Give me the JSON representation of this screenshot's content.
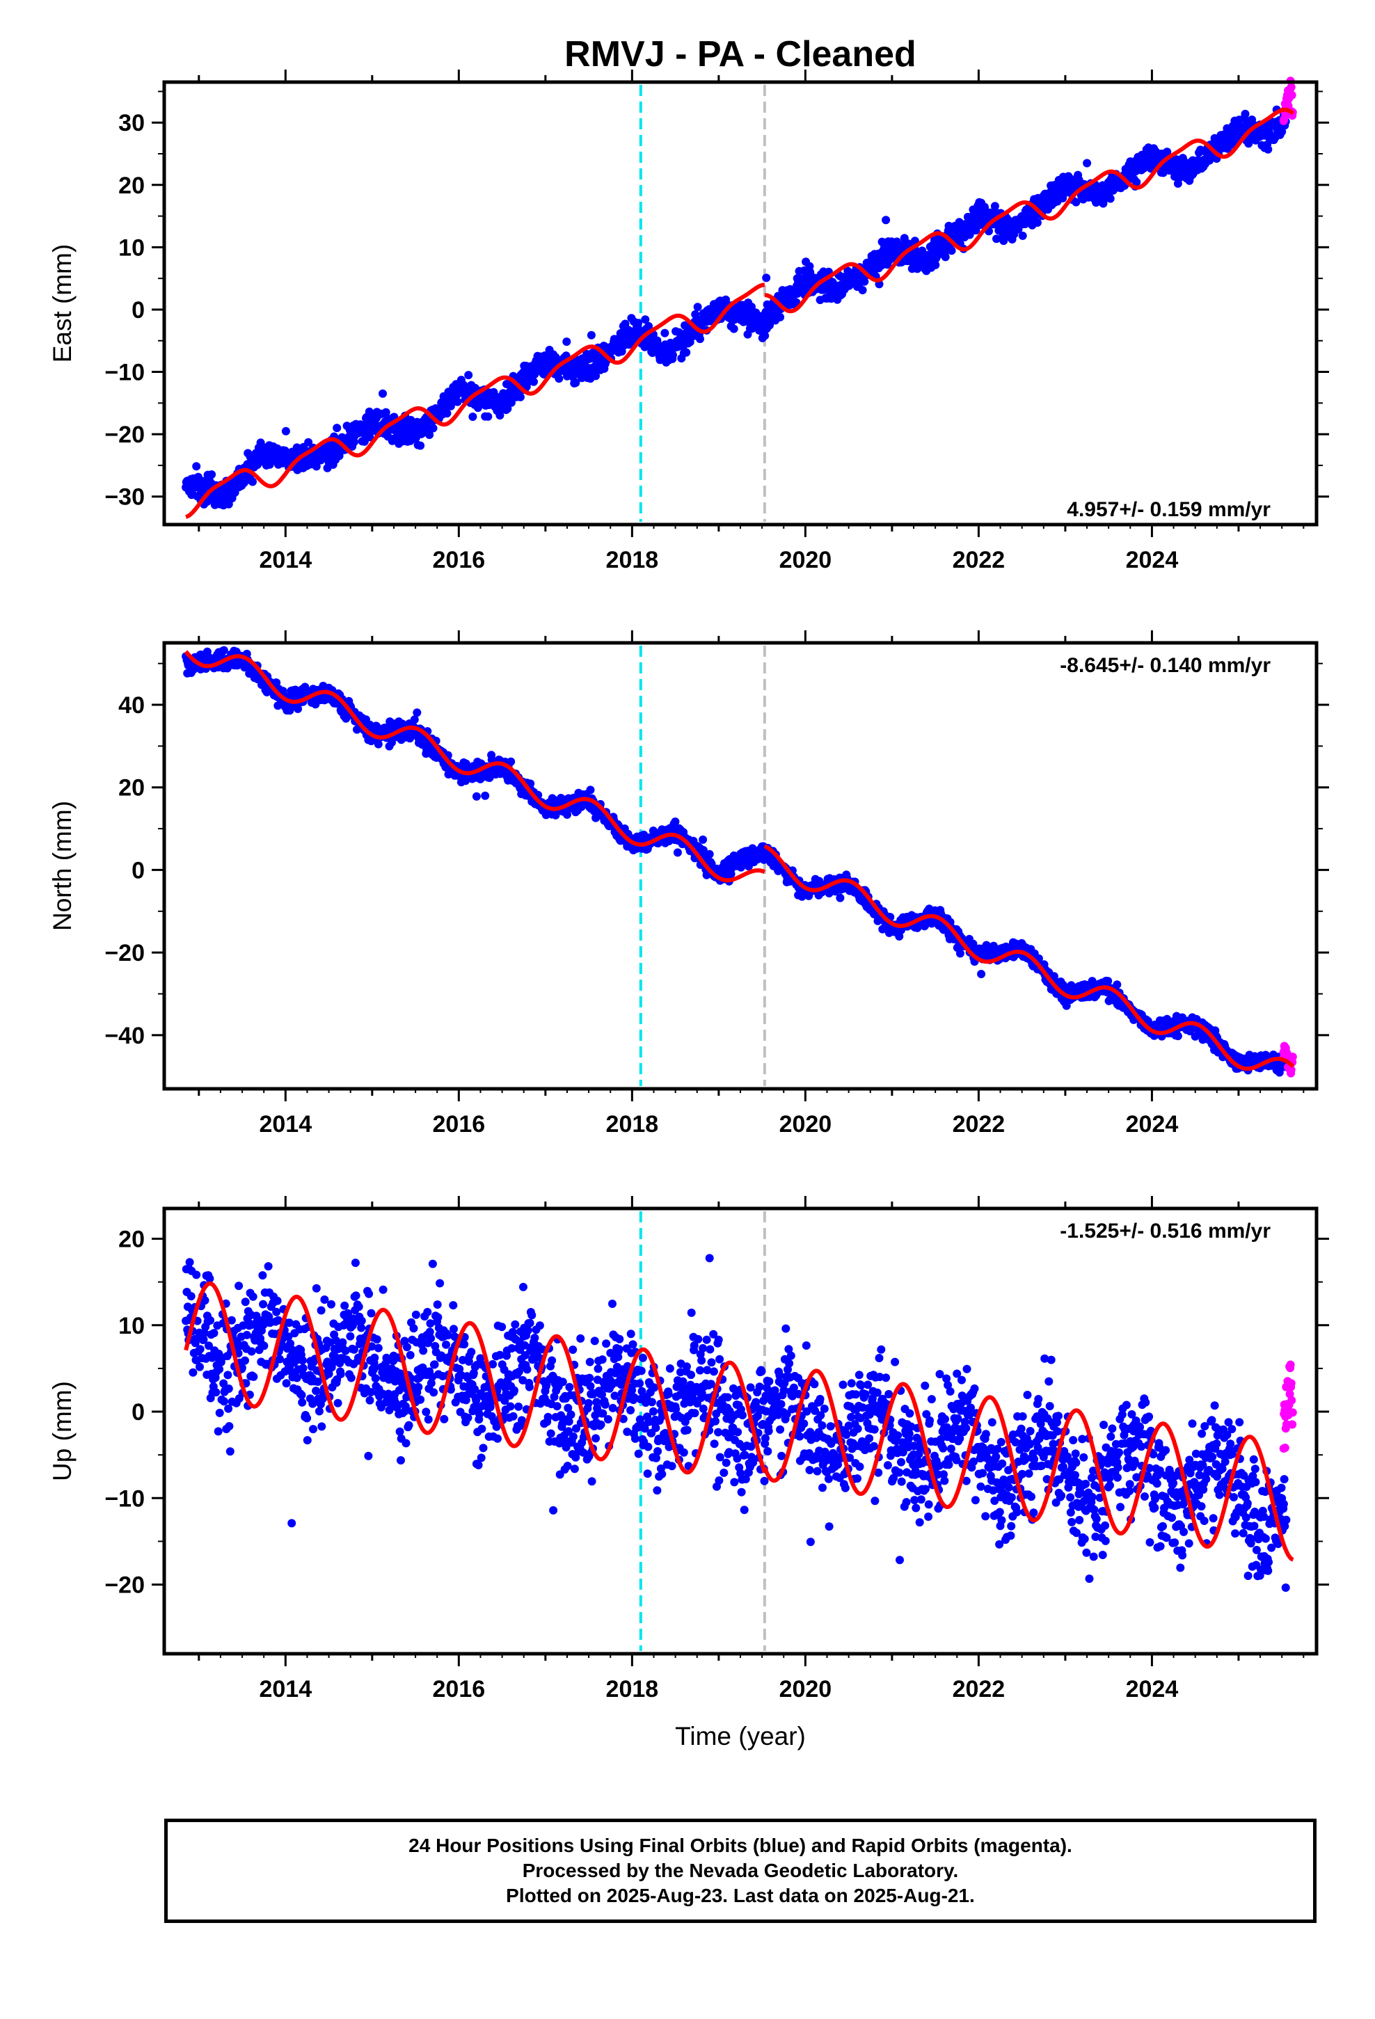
{
  "title": "RMVJ  - PA - Cleaned",
  "xlabel": "Time (year)",
  "footer": [
    "24 Hour Positions Using Final Orbits (blue) and Rapid Orbits (magenta).",
    "Processed by the Nevada Geodetic Laboratory.",
    "Plotted on 2025-Aug-23. Last data on 2025-Aug-21."
  ],
  "colors": {
    "final": "#0000ff",
    "rapid": "#ff00ff",
    "model": "#ff0000",
    "break_equipment": "#00e5ee",
    "break_other": "#c0c0c0"
  },
  "chart_data": [
    {
      "type": "scatter",
      "component": "east",
      "ylabel": "East (mm)",
      "rate_label": "4.957+/- 0.159 mm/yr",
      "rate_position": "bottom-right",
      "xlim": [
        2012.6,
        2025.9
      ],
      "ylim": [
        -34.5,
        36.5
      ],
      "xticks": [
        2014,
        2016,
        2018,
        2020,
        2022,
        2024
      ],
      "yticks": [
        -30,
        -20,
        -10,
        0,
        10,
        20,
        30
      ],
      "breaks": [
        2018.1,
        2019.53
      ],
      "data_start": 2012.85,
      "data_end": 2025.63,
      "series": [
        {
          "name": "Final Orbits",
          "color": "blue",
          "x": [
            2012.9,
            2013.3,
            2013.7,
            2014.2,
            2014.5,
            2015.0,
            2015.5,
            2016.0,
            2016.5,
            2017.0,
            2017.5,
            2018.0,
            2018.4,
            2019.0,
            2019.5,
            2020.0,
            2020.4,
            2021.0,
            2021.4,
            2022.0,
            2022.4,
            2023.0,
            2023.4,
            2024.0,
            2024.4,
            2025.0,
            2025.4,
            2025.6
          ],
          "y": [
            -28,
            -30,
            -23,
            -24,
            -23,
            -18,
            -20,
            -13,
            -15,
            -8,
            -10,
            -3,
            -7,
            0,
            -2,
            5,
            3,
            10,
            8,
            15,
            13,
            20,
            18,
            25,
            22,
            29,
            28,
            31
          ]
        },
        {
          "name": "Rapid Orbits",
          "color": "magenta",
          "x": [
            2025.5,
            2025.55,
            2025.6,
            2025.63
          ],
          "y": [
            30,
            33,
            35,
            32
          ]
        }
      ],
      "model": {
        "intercept_2019": 0.5,
        "rate": 4.957,
        "annual_sin": 1.2,
        "annual_cos": -1.5,
        "semiannual_sin": 0.5,
        "semiannual_cos": 0.3
      }
    },
    {
      "type": "scatter",
      "component": "north",
      "ylabel": "North (mm)",
      "rate_label": "-8.645+/- 0.140 mm/yr",
      "rate_position": "top-right",
      "xlim": [
        2012.6,
        2025.9
      ],
      "ylim": [
        -53,
        55
      ],
      "xticks": [
        2014,
        2016,
        2018,
        2020,
        2022,
        2024
      ],
      "yticks": [
        -40,
        -20,
        0,
        20,
        40
      ],
      "breaks": [
        2018.1,
        2019.53
      ],
      "data_start": 2012.85,
      "data_end": 2025.63,
      "series": [
        {
          "name": "Final Orbits",
          "color": "blue",
          "x": [
            2012.9,
            2013.5,
            2014.0,
            2014.5,
            2015.0,
            2015.5,
            2016.0,
            2016.5,
            2017.0,
            2017.5,
            2018.0,
            2018.5,
            2019.0,
            2019.5,
            2020.0,
            2020.5,
            2021.0,
            2021.5,
            2022.0,
            2022.5,
            2023.0,
            2023.5,
            2024.0,
            2024.5,
            2025.0,
            2025.6
          ],
          "y": [
            50,
            51,
            41,
            43,
            33,
            34,
            23,
            25,
            15,
            17,
            6,
            9,
            -1,
            5,
            -5,
            -3,
            -14,
            -11,
            -21,
            -19,
            -30,
            -29,
            -39,
            -37,
            -47,
            -46
          ]
        },
        {
          "name": "Rapid Orbits",
          "color": "magenta",
          "x": [
            2025.5,
            2025.55,
            2025.6,
            2025.63
          ],
          "y": [
            -42,
            -45,
            -48,
            -47
          ]
        }
      ],
      "model": {
        "intercept_2019": -1.0,
        "rate": -8.645,
        "annual_sin": -0.5,
        "annual_cos": -3.0,
        "semiannual_sin": 0.0,
        "semiannual_cos": 0.0
      }
    },
    {
      "type": "scatter",
      "component": "up",
      "ylabel": "Up (mm)",
      "rate_label": "-1.525+/- 0.516 mm/yr",
      "rate_position": "top-right",
      "xlim": [
        2012.6,
        2025.9
      ],
      "ylim": [
        -28,
        23.5
      ],
      "xticks": [
        2014,
        2016,
        2018,
        2020,
        2022,
        2024
      ],
      "yticks": [
        -20,
        -10,
        0,
        10,
        20
      ],
      "breaks": [
        2018.1,
        2019.53
      ],
      "data_start": 2012.85,
      "data_end": 2025.63,
      "series": [
        {
          "name": "Final Orbits",
          "color": "blue",
          "x": [
            2012.9,
            2013.3,
            2013.8,
            2014.3,
            2014.8,
            2015.3,
            2015.8,
            2016.3,
            2016.8,
            2017.3,
            2017.8,
            2018.3,
            2018.8,
            2019.3,
            2019.8,
            2020.3,
            2020.8,
            2021.3,
            2021.8,
            2022.3,
            2022.8,
            2023.3,
            2023.8,
            2024.3,
            2024.8,
            2025.3,
            2025.6
          ],
          "y": [
            12,
            4,
            11,
            3,
            10,
            1,
            8,
            0,
            7,
            -2,
            5,
            -3,
            4,
            -4,
            2,
            -6,
            1,
            -7,
            -1,
            -9,
            -2,
            -11,
            -4,
            -12,
            -5,
            -14,
            -9
          ]
        },
        {
          "name": "Rapid Orbits",
          "color": "magenta",
          "x": [
            2025.5,
            2025.55,
            2025.6,
            2025.63
          ],
          "y": [
            -5,
            0,
            3,
            -2
          ]
        }
      ],
      "model": {
        "intercept_2019": 0.0,
        "rate": -1.525,
        "annual_sin": 5.0,
        "annual_cos": 4.5,
        "semiannual_sin": 0.0,
        "semiannual_cos": 0.0
      }
    }
  ]
}
